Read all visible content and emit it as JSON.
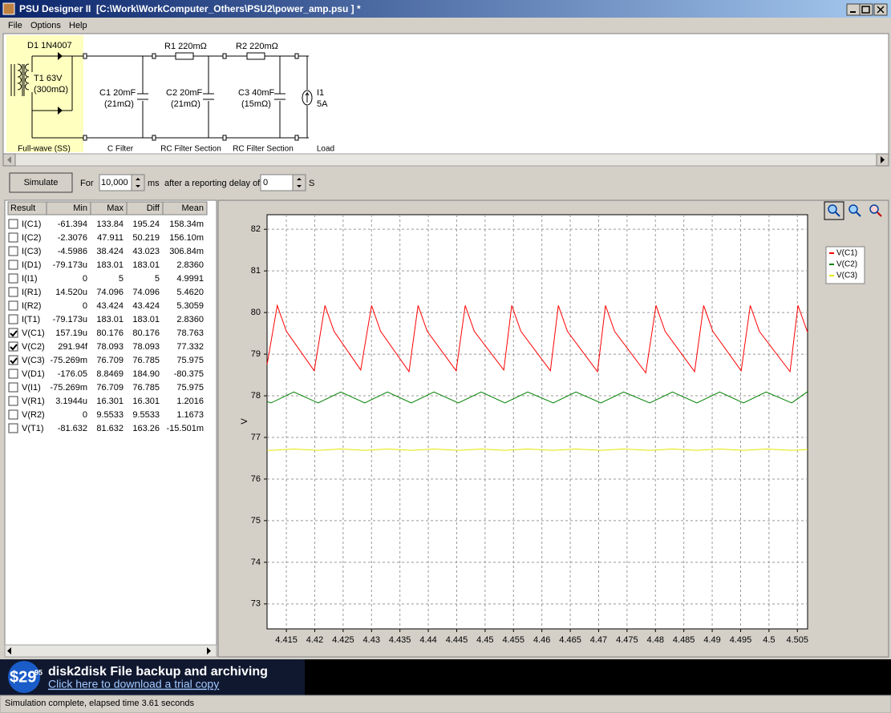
{
  "window": {
    "title": "PSU Designer II  [C:\\Work\\WorkComputer_Others\\PSU2\\power_amp.psu ] *"
  },
  "menu": [
    "File",
    "Options",
    "Help"
  ],
  "schematic": {
    "d1": "D1 1N4007",
    "t1": "T1 63V",
    "t1_r": "(300mΩ)",
    "c1": "C1 20mF",
    "c1_r": "(21mΩ)",
    "r1": "R1 220mΩ",
    "c2": "C2 20mF",
    "c2_r": "(21mΩ)",
    "r2": "R2 220mΩ",
    "c3": "C3 40mF",
    "c3_r": "(15mΩ)",
    "i1": "I1",
    "i1_v": "5A",
    "sections": [
      "Full-wave (SS)",
      "C Filter",
      "RC Filter Section",
      "RC Filter Section",
      "Load"
    ]
  },
  "toolbar": {
    "simulate": "Simulate",
    "for": "For",
    "duration": "10,000",
    "unit": "ms",
    "delay_label": "after a reporting delay of",
    "delay": "0",
    "delay_unit": "S"
  },
  "results": {
    "columns": [
      "Result",
      "Min",
      "Max",
      "Diff",
      "Mean"
    ],
    "rows": [
      {
        "name": "I(C1)",
        "min": "-61.394",
        "max": "133.84",
        "diff": "195.24",
        "mean": "158.34m",
        "checked": false
      },
      {
        "name": "I(C2)",
        "min": "-2.3076",
        "max": "47.911",
        "diff": "50.219",
        "mean": "156.10m",
        "checked": false
      },
      {
        "name": "I(C3)",
        "min": "-4.5986",
        "max": "38.424",
        "diff": "43.023",
        "mean": "306.84m",
        "checked": false
      },
      {
        "name": "I(D1)",
        "min": "-79.173u",
        "max": "183.01",
        "diff": "183.01",
        "mean": "2.8360",
        "checked": false
      },
      {
        "name": "I(I1)",
        "min": "0",
        "max": "5",
        "diff": "5",
        "mean": "4.9991",
        "checked": false
      },
      {
        "name": "I(R1)",
        "min": "14.520u",
        "max": "74.096",
        "diff": "74.096",
        "mean": "5.4620",
        "checked": false
      },
      {
        "name": "I(R2)",
        "min": "0",
        "max": "43.424",
        "diff": "43.424",
        "mean": "5.3059",
        "checked": false
      },
      {
        "name": "I(T1)",
        "min": "-79.173u",
        "max": "183.01",
        "diff": "183.01",
        "mean": "2.8360",
        "checked": false
      },
      {
        "name": "V(C1)",
        "min": "157.19u",
        "max": "80.176",
        "diff": "80.176",
        "mean": "78.763",
        "checked": true
      },
      {
        "name": "V(C2)",
        "min": "291.94f",
        "max": "78.093",
        "diff": "78.093",
        "mean": "77.332",
        "checked": true
      },
      {
        "name": "V(C3)",
        "min": "-75.269m",
        "max": "76.709",
        "diff": "76.785",
        "mean": "75.975",
        "checked": true
      },
      {
        "name": "V(D1)",
        "min": "-176.05",
        "max": "8.8469",
        "diff": "184.90",
        "mean": "-80.375",
        "checked": false
      },
      {
        "name": "V(I1)",
        "min": "-75.269m",
        "max": "76.709",
        "diff": "76.785",
        "mean": "75.975",
        "checked": false
      },
      {
        "name": "V(R1)",
        "min": "3.1944u",
        "max": "16.301",
        "diff": "16.301",
        "mean": "1.2016",
        "checked": false
      },
      {
        "name": "V(R2)",
        "min": "0",
        "max": "9.5533",
        "diff": "9.5533",
        "mean": "1.1673",
        "checked": false
      },
      {
        "name": "V(T1)",
        "min": "-81.632",
        "max": "81.632",
        "diff": "163.26",
        "mean": "-15.501m",
        "checked": false
      }
    ]
  },
  "chart_data": {
    "type": "line",
    "y_label": "V",
    "xlim": [
      4.4116,
      4.5068
    ],
    "ylim": [
      72.4,
      82.35
    ],
    "xticks": [
      4.415,
      4.42,
      4.425,
      4.43,
      4.435,
      4.44,
      4.445,
      4.45,
      4.455,
      4.46,
      4.465,
      4.47,
      4.475,
      4.48,
      4.485,
      4.49,
      4.495,
      4.5,
      4.505
    ],
    "yticks": [
      73,
      74,
      75,
      76,
      77,
      78,
      79,
      80,
      81,
      82
    ],
    "grid": true,
    "legend": "right",
    "series": [
      {
        "name": "V(C1)",
        "color": "#ff0000",
        "x": [
          4.4116,
          4.4134,
          4.415,
          4.4199,
          4.4218,
          4.4234,
          4.4281,
          4.43,
          4.4316,
          4.4366,
          4.4382,
          4.4398,
          4.4449,
          4.4465,
          4.4481,
          4.4533,
          4.4547,
          4.4563,
          4.4615,
          4.4629,
          4.4645,
          4.4698,
          4.4712,
          4.4728,
          4.4783,
          4.4801,
          4.4817,
          4.4869,
          4.4885,
          4.4901,
          4.4951,
          4.4967,
          4.4983,
          4.5037,
          4.5051,
          4.5068
        ],
        "values": [
          78.75,
          80.17,
          79.55,
          78.6,
          80.17,
          79.55,
          78.62,
          80.17,
          79.55,
          78.58,
          80.17,
          79.55,
          78.6,
          80.17,
          79.55,
          78.62,
          80.17,
          79.55,
          78.6,
          80.17,
          79.55,
          78.58,
          80.17,
          79.55,
          78.55,
          80.17,
          79.55,
          78.58,
          80.17,
          79.55,
          78.6,
          80.17,
          79.55,
          78.58,
          80.17,
          79.52
        ]
      },
      {
        "name": "V(C2)",
        "color": "#008000",
        "x": [
          4.4116,
          4.4123,
          4.4163,
          4.4206,
          4.4246,
          4.4288,
          4.4328,
          4.437,
          4.441,
          4.4453,
          4.4493,
          4.4535,
          4.4575,
          4.462,
          4.466,
          4.4704,
          4.4744,
          4.479,
          4.483,
          4.4873,
          4.4913,
          4.4955,
          4.4995,
          4.504,
          4.5068
        ],
        "values": [
          77.86,
          77.83,
          78.09,
          77.83,
          78.09,
          77.83,
          78.09,
          77.83,
          78.09,
          77.83,
          78.09,
          77.83,
          78.09,
          77.83,
          78.09,
          77.83,
          78.09,
          77.83,
          78.09,
          77.83,
          78.09,
          77.83,
          78.09,
          77.83,
          78.1
        ]
      },
      {
        "name": "V(C3)",
        "color": "#e6e600",
        "x": [
          4.4116,
          4.4123,
          4.4163,
          4.4206,
          4.4246,
          4.4288,
          4.4328,
          4.437,
          4.441,
          4.4453,
          4.4493,
          4.4535,
          4.4575,
          4.462,
          4.466,
          4.4704,
          4.4744,
          4.479,
          4.483,
          4.4873,
          4.4913,
          4.4955,
          4.4995,
          4.504,
          4.5068
        ],
        "values": [
          76.69,
          76.69,
          76.72,
          76.69,
          76.72,
          76.69,
          76.72,
          76.69,
          76.72,
          76.69,
          76.72,
          76.69,
          76.72,
          76.69,
          76.72,
          76.69,
          76.72,
          76.69,
          76.72,
          76.69,
          76.72,
          76.69,
          76.72,
          76.69,
          76.71
        ]
      }
    ]
  },
  "banner": {
    "price": "$29",
    "cents": "95",
    "title": "disk2disk File backup and archiving",
    "link": "Click here to download a trial copy"
  },
  "status": "Simulation complete, elapsed time 3.61 seconds"
}
